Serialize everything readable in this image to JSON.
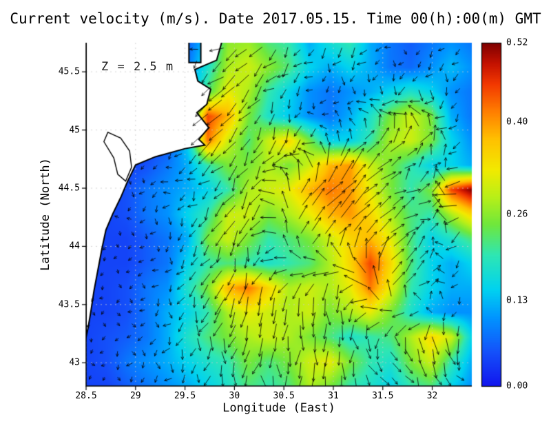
{
  "title": "Current velocity (m/s). Date 2017.05.15. Time 00(h):00(m) GMT",
  "depth_label": "Z = 2.5 m",
  "chart_data": {
    "type": "heatmap",
    "title": "Current velocity (m/s). Date 2017.05.15. Time 00(h):00(m) GMT",
    "date": "2017.05.15",
    "time": "00(h):00(m) GMT",
    "units": "m/s",
    "depth_annotation": "Z = 2.5 m",
    "xlabel": "Longitude (East)",
    "ylabel": "Latitude (North)",
    "xlim": [
      28.5,
      32.4
    ],
    "ylim": [
      42.8,
      45.75
    ],
    "xticks": [
      28.5,
      29,
      29.5,
      30,
      30.5,
      31,
      31.5,
      32
    ],
    "xtick_labels": [
      "28.5",
      "29",
      "29.5",
      "30",
      "30.5",
      "31",
      "31.5",
      "32"
    ],
    "yticks": [
      43,
      43.5,
      44,
      44.5,
      45,
      45.5
    ],
    "ytick_labels": [
      "43",
      "43.5",
      "44",
      "44.5",
      "45",
      "45.5"
    ],
    "grid_lines": "dotted",
    "land_color": "#ffffff",
    "coast_color": "#000000",
    "arrow_color": "#000000",
    "colorbar": {
      "min": 0,
      "max": 0.52,
      "tick_values": [
        0,
        0.13,
        0.26,
        0.4,
        0.52
      ],
      "tick_labels": [
        "0.00",
        "0.13",
        "0.26",
        "0.40",
        "0.52"
      ]
    },
    "colormap": [
      {
        "t": 0.0,
        "c": "#1216ee"
      },
      {
        "t": 0.1,
        "c": "#1452fa"
      },
      {
        "t": 0.2,
        "c": "#0096ff"
      },
      {
        "t": 0.28,
        "c": "#00d2f0"
      },
      {
        "t": 0.38,
        "c": "#2ee6b4"
      },
      {
        "t": 0.47,
        "c": "#6fe73c"
      },
      {
        "t": 0.55,
        "c": "#b8ef18"
      },
      {
        "t": 0.63,
        "c": "#f2ea00"
      },
      {
        "t": 0.72,
        "c": "#ffc000"
      },
      {
        "t": 0.8,
        "c": "#ff7e00"
      },
      {
        "t": 0.88,
        "c": "#f23800"
      },
      {
        "t": 0.94,
        "c": "#c41200"
      },
      {
        "t": 1.0,
        "c": "#7e0000"
      }
    ],
    "velocity_grid": {
      "lon": [
        28.5,
        28.71,
        28.91,
        29.12,
        29.32,
        29.53,
        29.73,
        29.94,
        30.14,
        30.35,
        30.55,
        30.76,
        30.96,
        31.17,
        31.37,
        31.58,
        31.78,
        31.99,
        32.19,
        32.4
      ],
      "lat": [
        45.75,
        45.54,
        45.33,
        45.12,
        44.91,
        44.7,
        44.49,
        44.28,
        44.07,
        43.86,
        43.65,
        43.44,
        43.23,
        43.02,
        42.81
      ],
      "magnitude": [
        [
          0.02,
          0.02,
          0.02,
          0.03,
          0.04,
          0.06,
          0.15,
          0.26,
          0.27,
          0.22,
          0.2,
          0.12,
          0.17,
          0.2,
          0.12,
          0.08,
          0.06,
          0.08,
          0.1,
          0.08
        ],
        [
          0.02,
          0.02,
          0.02,
          0.03,
          0.05,
          0.08,
          0.18,
          0.28,
          0.3,
          0.26,
          0.22,
          0.15,
          0.12,
          0.15,
          0.12,
          0.08,
          0.07,
          0.1,
          0.13,
          0.1
        ],
        [
          0.02,
          0.02,
          0.03,
          0.04,
          0.06,
          0.1,
          0.22,
          0.32,
          0.28,
          0.2,
          0.15,
          0.1,
          0.08,
          0.1,
          0.12,
          0.15,
          0.18,
          0.15,
          0.1,
          0.08
        ],
        [
          0.02,
          0.03,
          0.03,
          0.04,
          0.08,
          0.12,
          0.45,
          0.38,
          0.25,
          0.18,
          0.14,
          0.1,
          0.08,
          0.12,
          0.18,
          0.25,
          0.3,
          0.25,
          0.12,
          0.08
        ],
        [
          0.03,
          0.03,
          0.04,
          0.04,
          0.05,
          0.15,
          0.42,
          0.3,
          0.22,
          0.3,
          0.35,
          0.25,
          0.15,
          0.15,
          0.2,
          0.28,
          0.3,
          0.25,
          0.15,
          0.1
        ],
        [
          0.03,
          0.03,
          0.04,
          0.05,
          0.08,
          0.12,
          0.2,
          0.25,
          0.25,
          0.28,
          0.25,
          0.3,
          0.38,
          0.4,
          0.3,
          0.25,
          0.2,
          0.15,
          0.15,
          0.12
        ],
        [
          0.03,
          0.04,
          0.05,
          0.08,
          0.1,
          0.12,
          0.15,
          0.2,
          0.28,
          0.3,
          0.32,
          0.38,
          0.42,
          0.4,
          0.32,
          0.25,
          0.2,
          0.25,
          0.45,
          0.52
        ],
        [
          0.03,
          0.04,
          0.05,
          0.08,
          0.1,
          0.15,
          0.2,
          0.3,
          0.3,
          0.25,
          0.28,
          0.32,
          0.38,
          0.4,
          0.35,
          0.28,
          0.22,
          0.2,
          0.28,
          0.35
        ],
        [
          0.03,
          0.04,
          0.04,
          0.06,
          0.08,
          0.12,
          0.25,
          0.3,
          0.25,
          0.2,
          0.22,
          0.25,
          0.3,
          0.35,
          0.38,
          0.32,
          0.22,
          0.15,
          0.18,
          0.22
        ],
        [
          0.04,
          0.04,
          0.04,
          0.06,
          0.08,
          0.15,
          0.2,
          0.22,
          0.2,
          0.18,
          0.2,
          0.22,
          0.28,
          0.35,
          0.45,
          0.35,
          0.22,
          0.15,
          0.12,
          0.15
        ],
        [
          0.04,
          0.04,
          0.05,
          0.08,
          0.1,
          0.18,
          0.25,
          0.38,
          0.42,
          0.35,
          0.28,
          0.3,
          0.28,
          0.32,
          0.42,
          0.32,
          0.2,
          0.15,
          0.12,
          0.12
        ],
        [
          0.04,
          0.04,
          0.05,
          0.08,
          0.12,
          0.15,
          0.2,
          0.28,
          0.32,
          0.3,
          0.28,
          0.3,
          0.25,
          0.28,
          0.32,
          0.25,
          0.18,
          0.12,
          0.1,
          0.1
        ],
        [
          0.04,
          0.05,
          0.06,
          0.08,
          0.12,
          0.18,
          0.22,
          0.25,
          0.28,
          0.3,
          0.28,
          0.25,
          0.22,
          0.18,
          0.2,
          0.22,
          0.28,
          0.35,
          0.3,
          0.15
        ],
        [
          0.04,
          0.05,
          0.08,
          0.1,
          0.12,
          0.15,
          0.18,
          0.2,
          0.25,
          0.22,
          0.25,
          0.3,
          0.32,
          0.25,
          0.2,
          0.18,
          0.25,
          0.3,
          0.2,
          0.12
        ],
        [
          0.04,
          0.04,
          0.06,
          0.08,
          0.1,
          0.12,
          0.15,
          0.18,
          0.22,
          0.2,
          0.22,
          0.28,
          0.25,
          0.2,
          0.18,
          0.15,
          0.2,
          0.22,
          0.15,
          0.1
        ]
      ]
    },
    "arrows": {
      "grid_spacing_px": 19,
      "direction_grid_deg": [
        [
          200,
          205,
          210,
          215,
          220,
          225,
          230,
          235,
          240,
          245
        ],
        [
          210,
          208,
          212,
          218,
          228,
          235,
          240,
          245,
          250,
          252
        ],
        [
          225,
          215,
          220,
          228,
          240,
          250,
          60,
          55,
          50,
          260
        ],
        [
          235,
          225,
          228,
          235,
          245,
          50,
          45,
          40,
          35,
          270
        ],
        [
          245,
          235,
          232,
          240,
          250,
          55,
          45,
          40,
          30,
          280
        ],
        [
          255,
          245,
          240,
          245,
          255,
          260,
          270,
          60,
          50,
          290
        ],
        [
          265,
          255,
          248,
          252,
          258,
          265,
          275,
          280,
          285,
          295
        ],
        [
          275,
          262,
          255,
          260,
          265,
          272,
          282,
          288,
          292,
          300
        ]
      ]
    },
    "coastline_land": [
      [
        28.5,
        45.78
      ],
      [
        29.54,
        45.78
      ],
      [
        29.54,
        45.58
      ],
      [
        29.66,
        45.58
      ],
      [
        29.66,
        45.78
      ],
      [
        29.88,
        45.78
      ],
      [
        29.82,
        45.6
      ],
      [
        29.6,
        45.52
      ],
      [
        29.63,
        45.42
      ],
      [
        29.76,
        45.35
      ],
      [
        29.72,
        45.22
      ],
      [
        29.62,
        45.15
      ],
      [
        29.74,
        45.02
      ],
      [
        29.64,
        44.92
      ],
      [
        29.7,
        44.87
      ],
      [
        29.5,
        44.84
      ],
      [
        29.2,
        44.77
      ],
      [
        29.0,
        44.7
      ],
      [
        28.92,
        44.56
      ],
      [
        28.85,
        44.42
      ],
      [
        28.77,
        44.28
      ],
      [
        28.7,
        44.14
      ],
      [
        28.66,
        43.98
      ],
      [
        28.62,
        43.8
      ],
      [
        28.58,
        43.62
      ],
      [
        28.55,
        43.45
      ],
      [
        28.52,
        43.3
      ],
      [
        28.5,
        43.22
      ]
    ],
    "lagoon": [
      [
        28.72,
        44.98
      ],
      [
        28.85,
        44.93
      ],
      [
        28.94,
        44.82
      ],
      [
        28.96,
        44.68
      ],
      [
        28.9,
        44.56
      ],
      [
        28.82,
        44.62
      ],
      [
        28.78,
        44.76
      ],
      [
        28.68,
        44.9
      ]
    ]
  }
}
